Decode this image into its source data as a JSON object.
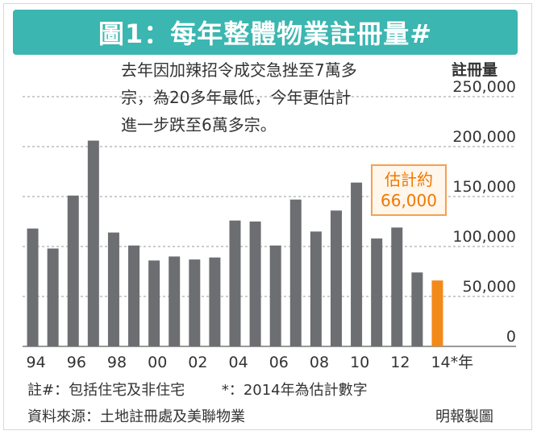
{
  "colors": {
    "title_bg": "#3bb6b0",
    "bar": "#6d6e72",
    "highlight_bar": "#f28a1a",
    "highlight_text": "#f07800",
    "grid": "#9a9a9a",
    "text": "#333333"
  },
  "header": {
    "title": "圖1：每年整體物業註冊量#"
  },
  "annotation": {
    "lines": [
      "去年因加辣招令成交急挫至7萬多",
      "宗，為20多年最低，今年更估計",
      "進一步跌至6萬多宗。"
    ]
  },
  "callout": {
    "line1": "估計約",
    "line2": "66,000"
  },
  "footnotes": {
    "hash_note": "註#：包括住宅及非住宅",
    "star_note": "*：2014年為估計數字",
    "source": "資料來源：土地註冊處及美聯物業",
    "credit": "明報製圖"
  },
  "chart_data": {
    "type": "bar",
    "title": "每年整體物業註冊量#",
    "ylabel": "註冊量",
    "xlabel": "",
    "ylim": [
      0,
      250000
    ],
    "yticks": [
      0,
      50000,
      100000,
      150000,
      200000,
      250000
    ],
    "ytick_labels": [
      "0",
      "50,000",
      "100,000",
      "150,000",
      "200,000",
      "250,000"
    ],
    "grid": true,
    "x_tick_labels": [
      "94",
      "96",
      "98",
      "00",
      "02",
      "04",
      "06",
      "08",
      "10",
      "12",
      "14*年"
    ],
    "categories": [
      "1994",
      "1995",
      "1996",
      "1997",
      "1998",
      "1999",
      "2000",
      "2001",
      "2002",
      "2003",
      "2004",
      "2005",
      "2006",
      "2007",
      "2008",
      "2009",
      "2010",
      "2011",
      "2012",
      "2013",
      "2014*"
    ],
    "values": [
      118000,
      98000,
      151000,
      206000,
      114000,
      101000,
      86000,
      90000,
      87000,
      89000,
      126000,
      125000,
      101000,
      147000,
      115000,
      136000,
      164000,
      108000,
      119000,
      74000,
      66000
    ],
    "highlight_index": 20,
    "annotation": "估計約 66,000"
  }
}
